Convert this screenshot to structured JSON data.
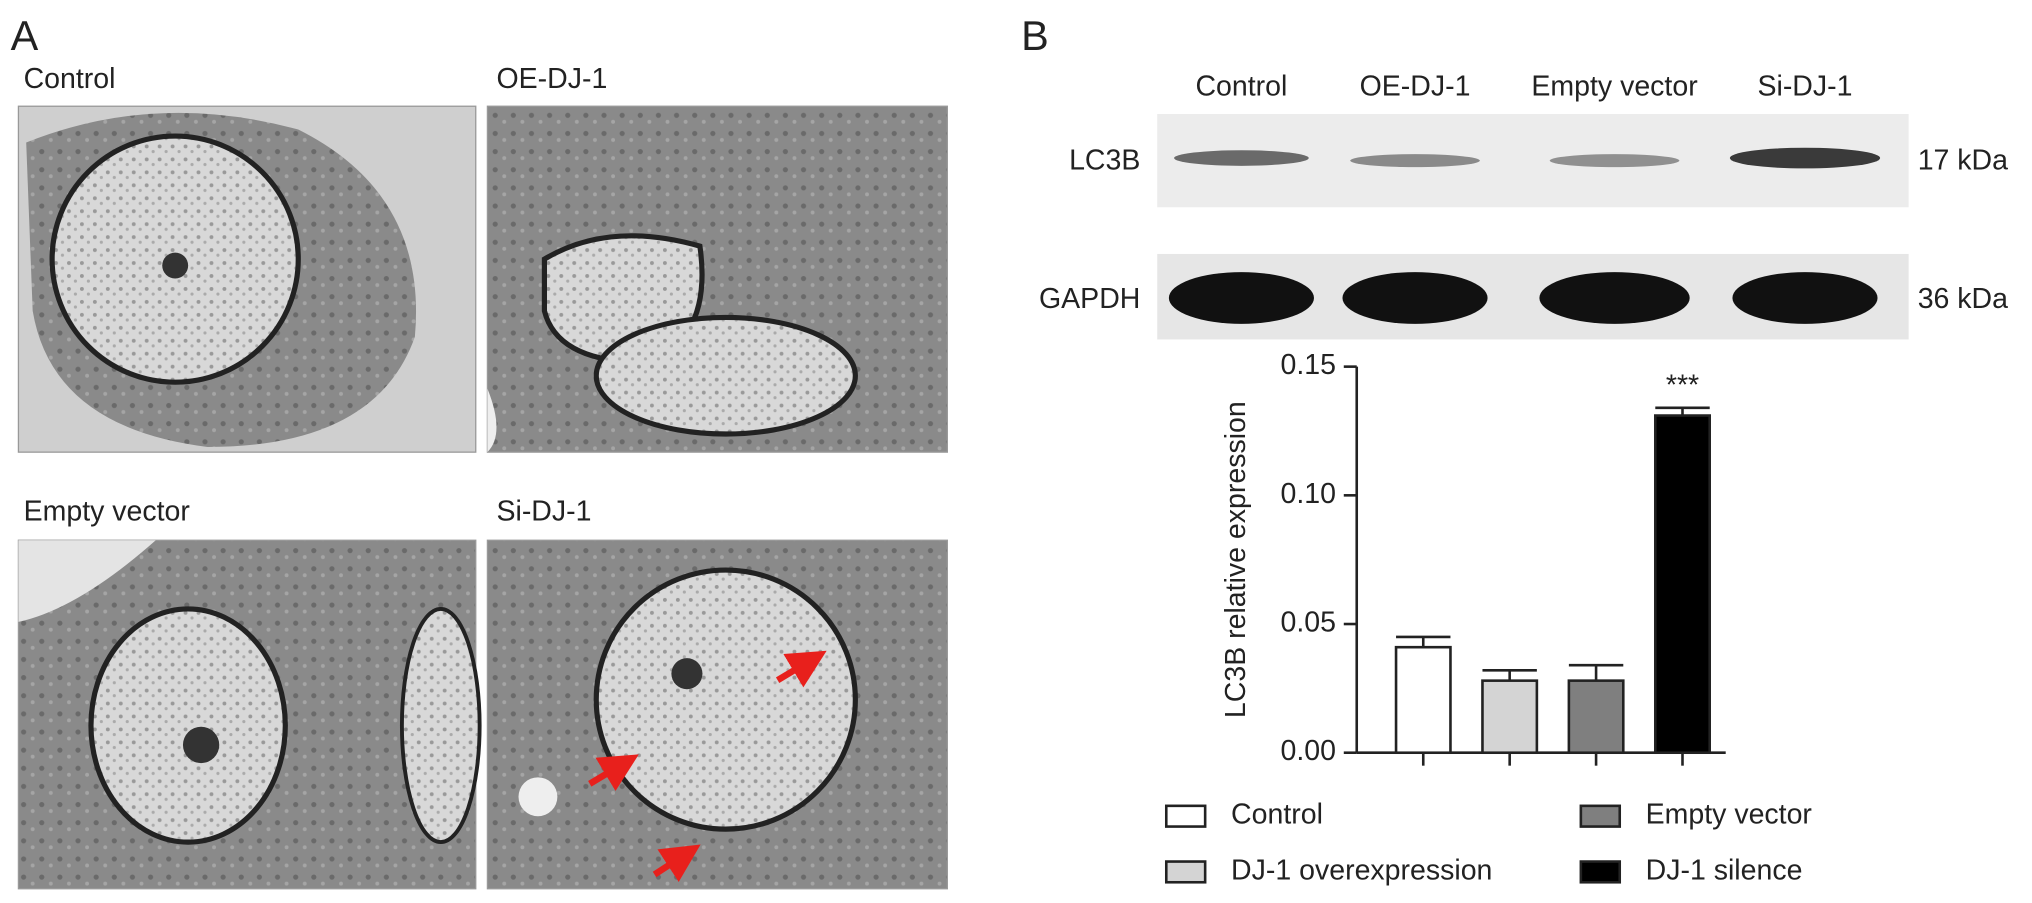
{
  "panel_a": {
    "label": "A",
    "images": [
      {
        "label": "Control"
      },
      {
        "label": "OE-DJ-1"
      },
      {
        "label": "Empty vector"
      },
      {
        "label": "Si-DJ-1"
      }
    ]
  },
  "panel_b": {
    "label": "B",
    "blot": {
      "lanes": [
        "Control",
        "OE-DJ-1",
        "Empty vector",
        "Si-DJ-1"
      ],
      "rows": [
        {
          "name": "LC3B",
          "size": "17 kDa"
        },
        {
          "name": "GAPDH",
          "size": "36 kDa"
        }
      ]
    }
  },
  "chart_data": {
    "type": "bar",
    "y_label": "LC3B relative expression",
    "categories": [
      "Control",
      "DJ-1 overexpression",
      "Empty vector",
      "DJ-1 silence"
    ],
    "colors": [
      "#ffffff",
      "#d4d4d4",
      "#7f7f7f",
      "#000000"
    ],
    "values": [
      0.041,
      0.028,
      0.028,
      0.131
    ],
    "errors": [
      0.004,
      0.004,
      0.006,
      0.003
    ],
    "significance": [
      null,
      null,
      null,
      "***"
    ],
    "ylim": [
      0,
      0.15
    ],
    "yticks": [
      {
        "value": 0,
        "label": "0.00"
      },
      {
        "value": 0.05,
        "label": "0.05"
      },
      {
        "value": 0.1,
        "label": "0.10"
      },
      {
        "value": 0.15,
        "label": "0.15"
      }
    ]
  }
}
